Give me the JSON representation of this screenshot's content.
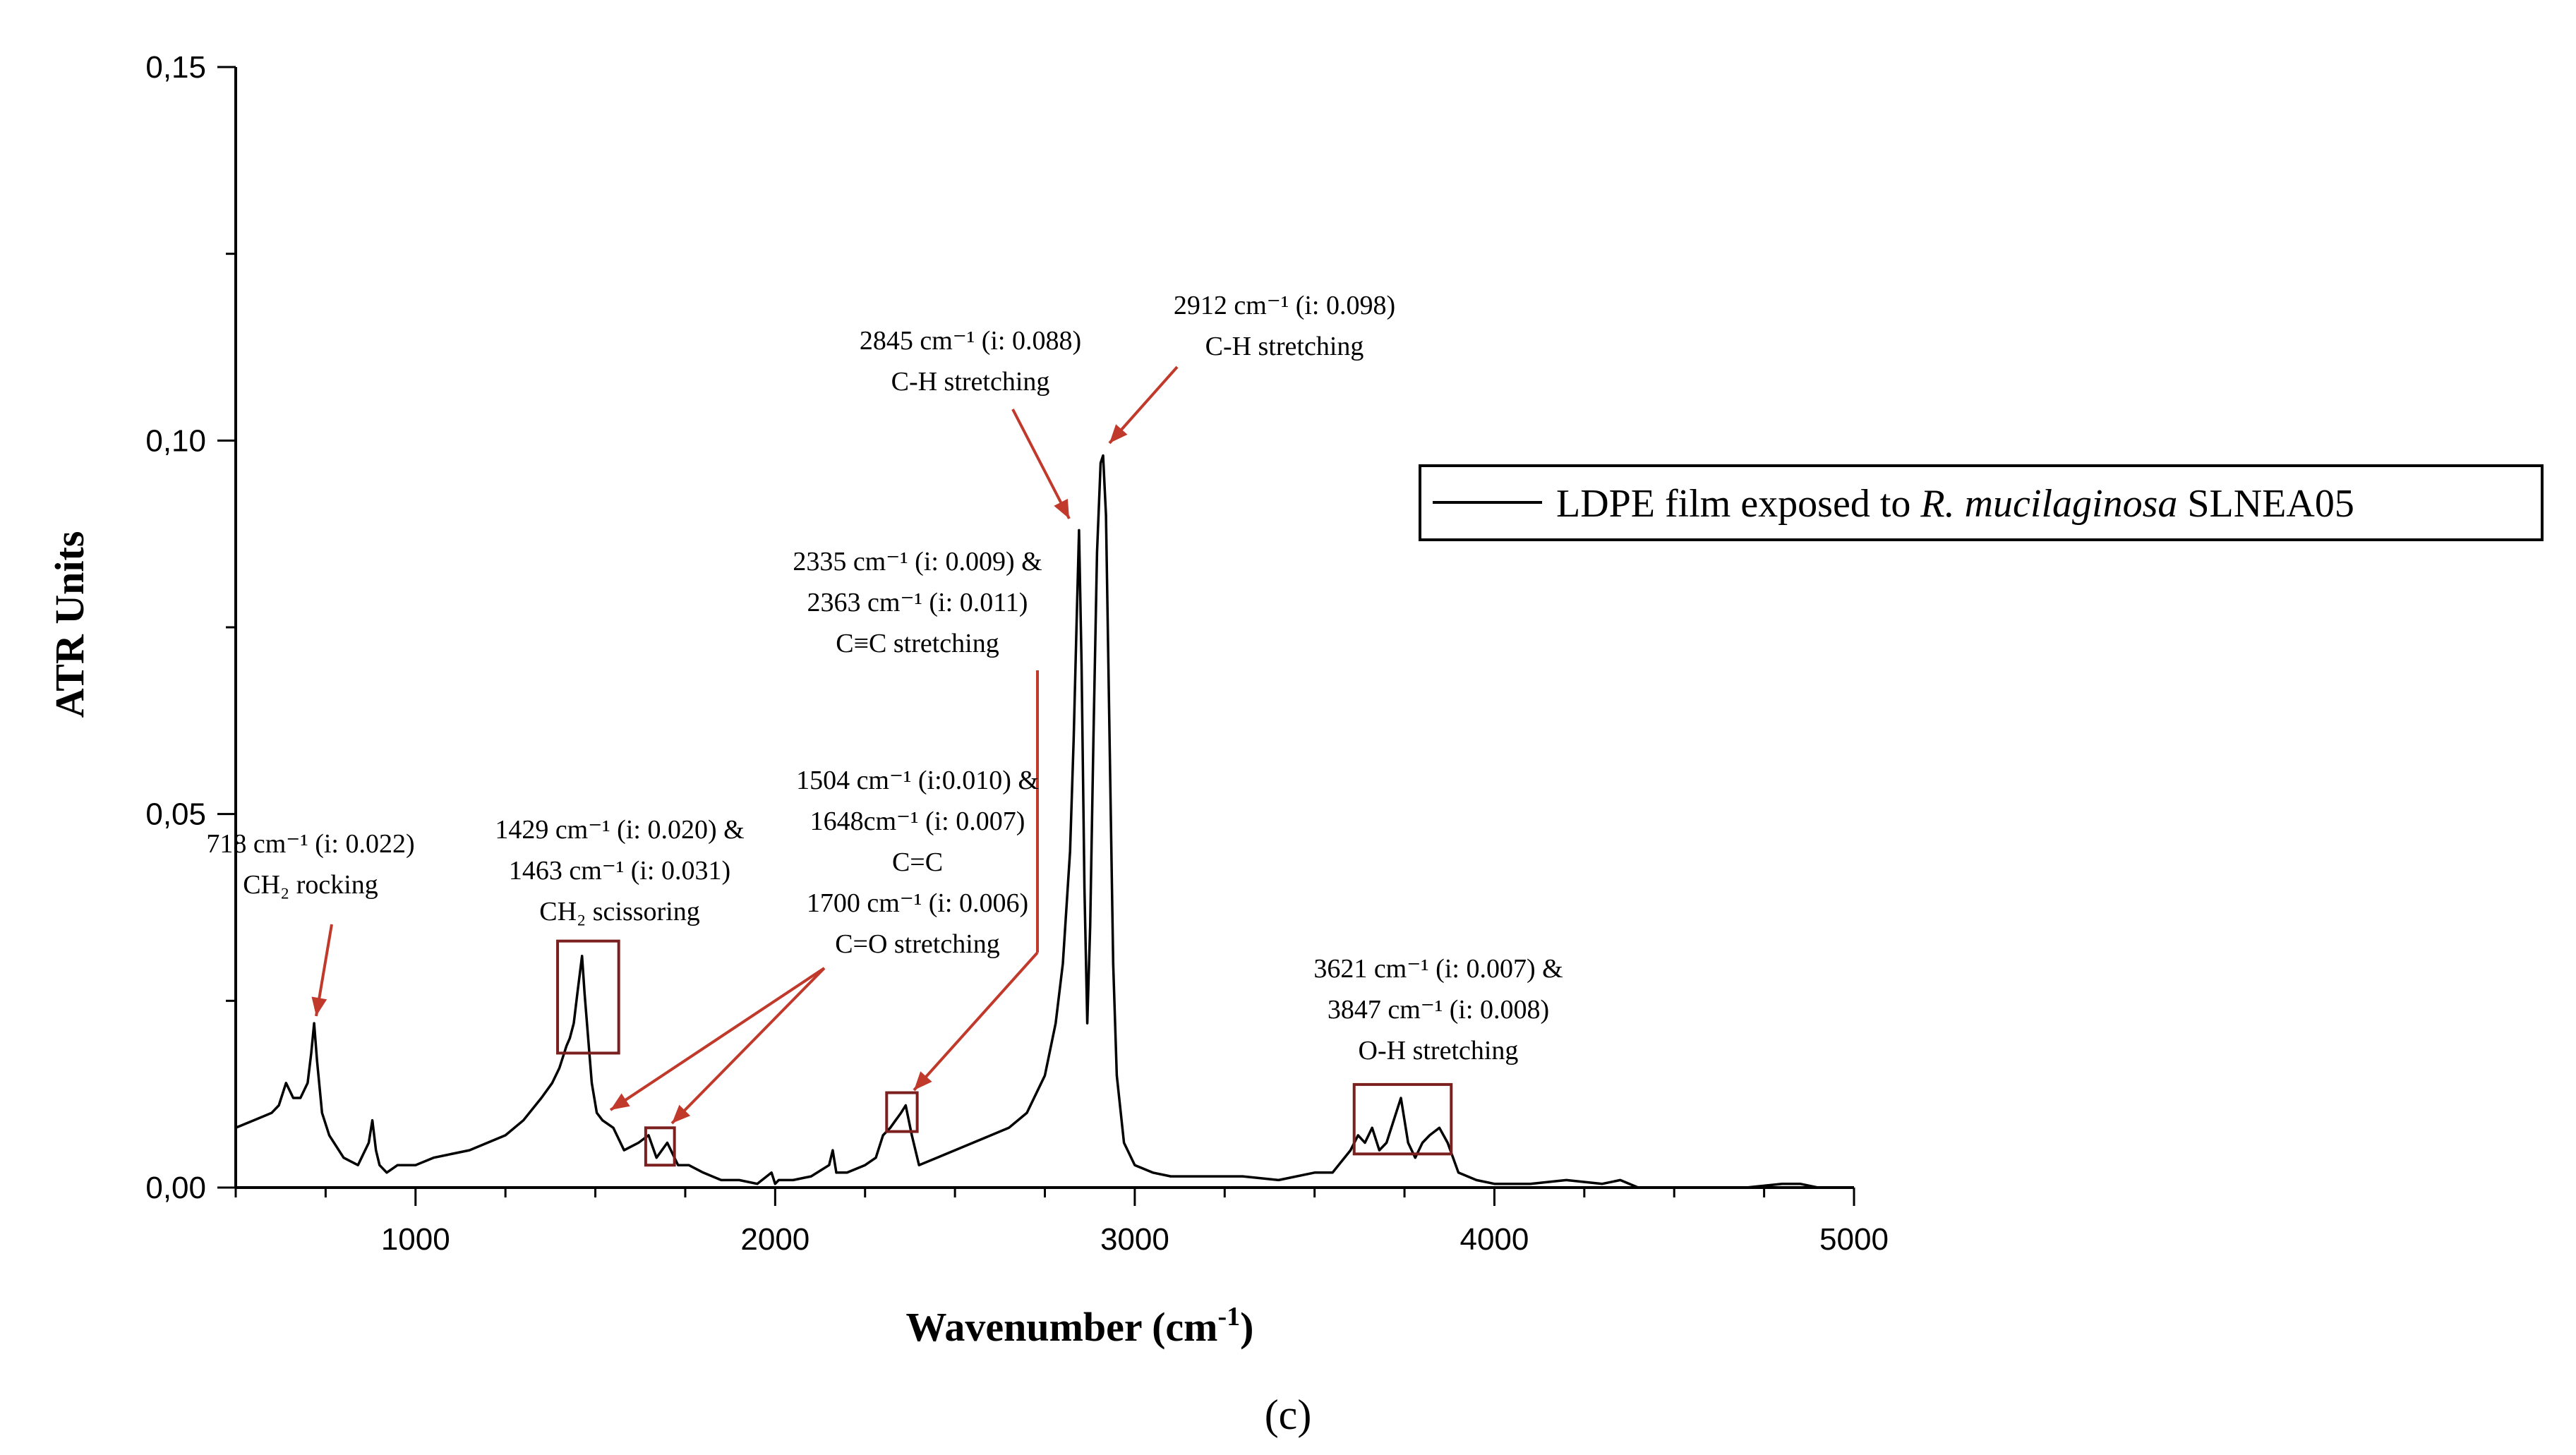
{
  "chart_data": {
    "type": "line",
    "xlabel": "Wavenumber (cm",
    "xlabel_sup": "-1",
    "xlabel_close": ")",
    "ylabel": "ATR Units",
    "xlim": [
      500,
      5000
    ],
    "ylim": [
      0,
      0.15
    ],
    "x_ticks": [
      "1000",
      "2000",
      "3000",
      "4000",
      "5000"
    ],
    "x_tick_values": [
      1000,
      2000,
      3000,
      4000,
      5000
    ],
    "y_ticks": [
      "0,00",
      "0,05",
      "0,10",
      "0,15"
    ],
    "y_tick_values": [
      0,
      0.05,
      0.1,
      0.15
    ],
    "legend": {
      "prefix": "LDPE film exposed to ",
      "italic": "R. mucilaginosa",
      "suffix": " SLNEA05",
      "position": "upper-right"
    },
    "panel_label": "(c)",
    "series": [
      {
        "name": "LDPE film exposed to R. mucilaginosa SLNEA05",
        "x": [
          500,
          550,
          600,
          620,
          640,
          660,
          680,
          700,
          710,
          718,
          726,
          740,
          760,
          800,
          840,
          870,
          880,
          890,
          900,
          920,
          950,
          1000,
          1050,
          1100,
          1150,
          1200,
          1250,
          1300,
          1350,
          1380,
          1400,
          1420,
          1429,
          1440,
          1450,
          1463,
          1470,
          1490,
          1504,
          1520,
          1550,
          1580,
          1620,
          1648,
          1670,
          1700,
          1730,
          1760,
          1800,
          1850,
          1900,
          1950,
          1990,
          2000,
          2010,
          2050,
          2100,
          2150,
          2160,
          2170,
          2200,
          2250,
          2280,
          2300,
          2320,
          2335,
          2350,
          2363,
          2380,
          2400,
          2450,
          2500,
          2550,
          2600,
          2650,
          2700,
          2750,
          2780,
          2800,
          2820,
          2830,
          2838,
          2845,
          2852,
          2860,
          2868,
          2876,
          2885,
          2895,
          2905,
          2912,
          2920,
          2930,
          2940,
          2950,
          2970,
          3000,
          3050,
          3100,
          3200,
          3300,
          3400,
          3500,
          3550,
          3600,
          3621,
          3640,
          3660,
          3680,
          3700,
          3720,
          3740,
          3760,
          3780,
          3800,
          3820,
          3847,
          3870,
          3900,
          3950,
          4000,
          4100,
          4200,
          4300,
          4350,
          4400,
          4500,
          4600,
          4700,
          4800,
          4850,
          4900,
          5000
        ],
        "y": [
          0.008,
          0.009,
          0.01,
          0.011,
          0.014,
          0.012,
          0.012,
          0.014,
          0.018,
          0.022,
          0.017,
          0.01,
          0.007,
          0.004,
          0.003,
          0.006,
          0.009,
          0.005,
          0.003,
          0.002,
          0.003,
          0.003,
          0.004,
          0.0045,
          0.005,
          0.006,
          0.007,
          0.009,
          0.012,
          0.014,
          0.016,
          0.019,
          0.02,
          0.022,
          0.026,
          0.031,
          0.026,
          0.014,
          0.01,
          0.009,
          0.008,
          0.005,
          0.006,
          0.007,
          0.004,
          0.006,
          0.003,
          0.003,
          0.002,
          0.001,
          0.001,
          0.0005,
          0.002,
          0.0005,
          0.001,
          0.001,
          0.0015,
          0.003,
          0.005,
          0.002,
          0.002,
          0.003,
          0.004,
          0.007,
          0.008,
          0.009,
          0.01,
          0.011,
          0.007,
          0.003,
          0.004,
          0.005,
          0.006,
          0.007,
          0.008,
          0.01,
          0.015,
          0.022,
          0.03,
          0.045,
          0.06,
          0.075,
          0.088,
          0.07,
          0.04,
          0.022,
          0.035,
          0.06,
          0.085,
          0.097,
          0.098,
          0.09,
          0.06,
          0.03,
          0.015,
          0.006,
          0.003,
          0.002,
          0.0015,
          0.0015,
          0.0015,
          0.001,
          0.002,
          0.002,
          0.005,
          0.007,
          0.006,
          0.008,
          0.005,
          0.006,
          0.009,
          0.012,
          0.006,
          0.004,
          0.006,
          0.007,
          0.008,
          0.006,
          0.002,
          0.001,
          0.0005,
          0.0005,
          0.001,
          0.0005,
          0.001,
          0,
          0,
          0,
          0,
          0.0005,
          0.0005,
          0,
          0
        ]
      }
    ],
    "annotations": [
      {
        "id": "a718",
        "lines": [
          "718 cm⁻¹ (i: 0.022)",
          "CH₂ rocking"
        ]
      },
      {
        "id": "a1429",
        "lines": [
          "1429 cm⁻¹ (i: 0.020) &",
          "1463 cm⁻¹ (i: 0.031)",
          "CH₂ scissoring"
        ]
      },
      {
        "id": "a1504",
        "lines": [
          "1504 cm⁻¹ (i:0.010) &",
          "1648cm⁻¹ (i: 0.007)",
          "C=C",
          "1700 cm⁻¹ (i: 0.006)",
          "C=O stretching"
        ]
      },
      {
        "id": "a2335",
        "lines": [
          "2335 cm⁻¹ (i: 0.009) &",
          "2363 cm⁻¹ (i: 0.011)",
          "C≡C stretching"
        ]
      },
      {
        "id": "a2845",
        "lines": [
          "2845 cm⁻¹ (i: 0.088)",
          "C-H stretching"
        ]
      },
      {
        "id": "a2912",
        "lines": [
          "2912 cm⁻¹ (i: 0.098)",
          "C-H stretching"
        ]
      },
      {
        "id": "a3621",
        "lines": [
          "3621 cm⁻¹ (i: 0.007) &",
          "3847 cm⁻¹ (i: 0.008)",
          "O-H stretching"
        ]
      }
    ],
    "highlight_boxes": [
      {
        "x_range": [
          1395,
          1565
        ],
        "y_range": [
          0.018,
          0.033
        ]
      },
      {
        "x_range": [
          1640,
          1720
        ],
        "y_range": [
          0.003,
          0.008
        ]
      },
      {
        "x_range": [
          2310,
          2395
        ],
        "y_range": [
          0.0075,
          0.0127
        ]
      },
      {
        "x_range": [
          3610,
          3880
        ],
        "y_range": [
          0.0045,
          0.0138
        ]
      }
    ]
  }
}
